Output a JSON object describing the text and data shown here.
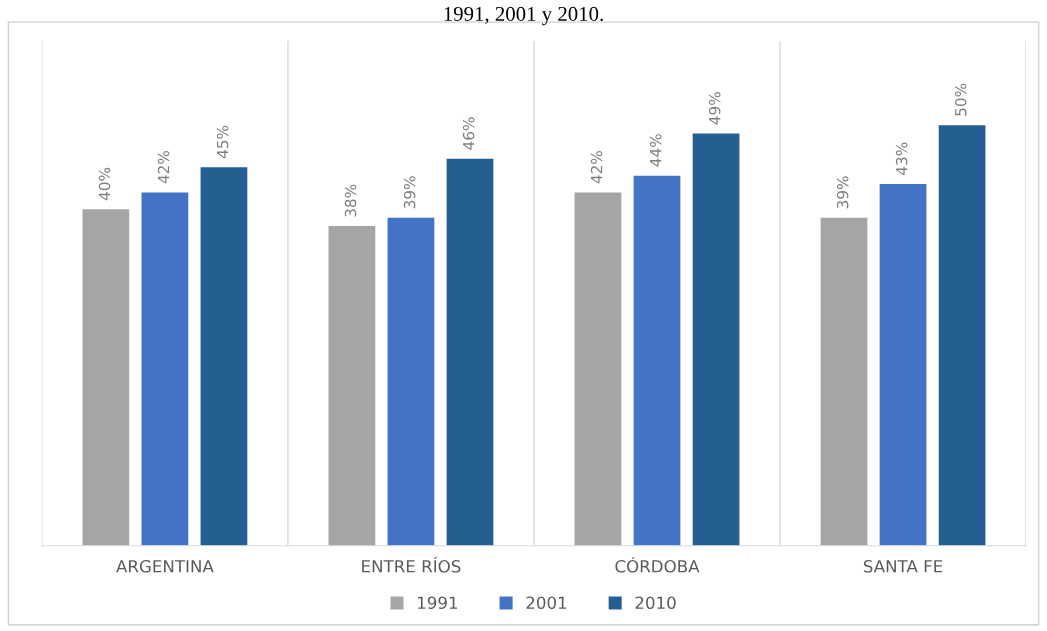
{
  "chart_data": {
    "type": "bar",
    "title": "1991, 2001 y 2010.",
    "categories": [
      "ARGENTINA",
      "ENTRE RÍOS",
      "CÓRDOBA",
      "SANTA FE"
    ],
    "series": [
      {
        "name": "1991",
        "color": "#a5a5a5",
        "values": [
          40,
          38,
          42,
          39
        ],
        "value_labels": [
          "40%",
          "38%",
          "42%",
          "39%"
        ]
      },
      {
        "name": "2001",
        "color": "#4472c4",
        "values": [
          42,
          39,
          44,
          43
        ],
        "value_labels": [
          "42%",
          "39%",
          "44%",
          "43%"
        ]
      },
      {
        "name": "2010",
        "color": "#255e91",
        "values": [
          45,
          46,
          49,
          50
        ],
        "value_labels": [
          "45%",
          "46%",
          "49%",
          "50%"
        ]
      }
    ],
    "ylim": [
      0,
      60
    ],
    "tick_labels": "x",
    "legend": "bottom",
    "grid": false
  }
}
